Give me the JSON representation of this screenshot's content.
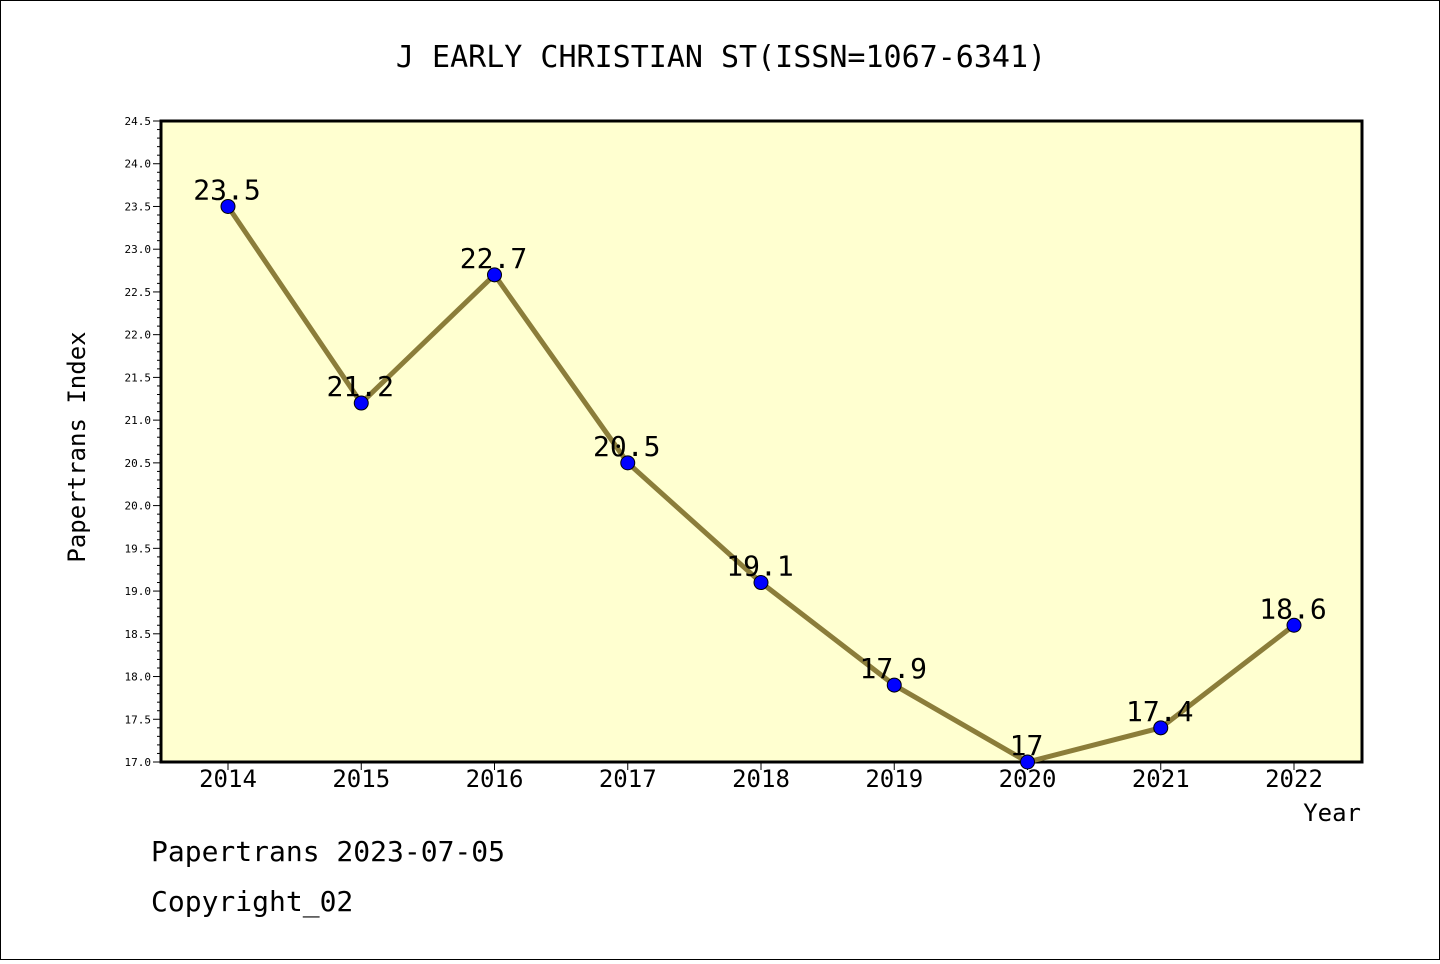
{
  "footer": {
    "stamp": "Papertrans 2023-07-05",
    "copyright": "Copyright_02"
  },
  "colors": {
    "plot_background": "#ffffd0",
    "line": "#8b7d3a",
    "marker": "#0000ff",
    "axis": "#000000"
  },
  "chart_data": {
    "type": "line",
    "title": "J EARLY CHRISTIAN ST(ISSN=1067-6341)",
    "xlabel": "Year",
    "ylabel": "Papertrans Index",
    "categories": [
      "2014",
      "2015",
      "2016",
      "2017",
      "2018",
      "2019",
      "2020",
      "2021",
      "2022"
    ],
    "series": [
      {
        "values": [
          23.5,
          21.2,
          22.7,
          20.5,
          19.1,
          17.9,
          17.0,
          17.4,
          18.6
        ],
        "labels": [
          "23.5",
          "21.2",
          "22.7",
          "20.5",
          "19.1",
          "17.9",
          "17",
          "17.4",
          "18.6"
        ]
      }
    ],
    "ylim": [
      17.0,
      24.5
    ],
    "yticks": [
      "17.0",
      "17.5",
      "18.0",
      "18.5",
      "19.0",
      "19.5",
      "20.0",
      "20.5",
      "21.0",
      "21.5",
      "22.0",
      "22.5",
      "23.0",
      "23.5",
      "24.0",
      "24.5"
    ],
    "grid": false,
    "legend": "none"
  }
}
